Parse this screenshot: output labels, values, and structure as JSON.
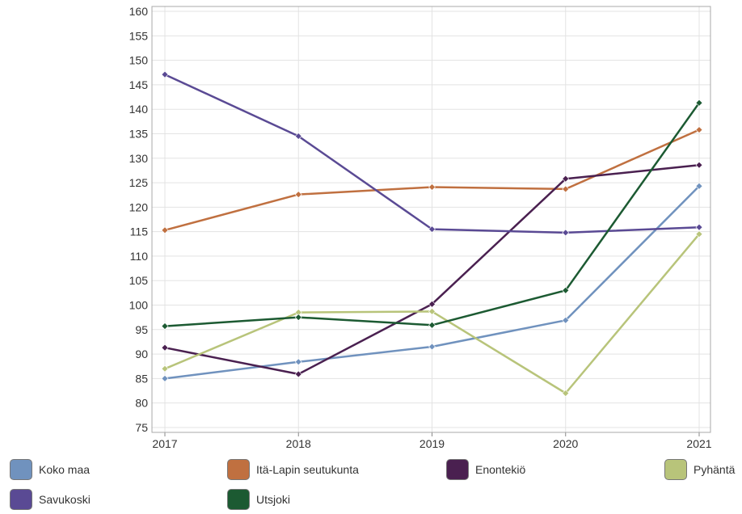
{
  "chart_data": {
    "type": "line",
    "title": "",
    "xlabel": "",
    "ylabel": "",
    "x": [
      "2017",
      "2018",
      "2019",
      "2020",
      "2021"
    ],
    "ylim": [
      74,
      161
    ],
    "yticks": [
      75,
      80,
      85,
      90,
      95,
      100,
      105,
      110,
      115,
      120,
      125,
      130,
      135,
      140,
      145,
      150,
      155,
      160
    ],
    "grid": true,
    "legend_position": "bottom",
    "series": [
      {
        "name": "Koko maa",
        "color": "#7092be",
        "values": [
          85.0,
          88.4,
          91.5,
          96.9,
          124.3
        ]
      },
      {
        "name": "Itä-Lapin seutukunta",
        "color": "#c07040",
        "values": [
          115.3,
          122.6,
          124.1,
          123.7,
          135.8
        ]
      },
      {
        "name": "Enontekiö",
        "color": "#4a2050",
        "values": [
          91.3,
          85.9,
          100.2,
          125.8,
          128.6
        ]
      },
      {
        "name": "Pyhäntä",
        "color": "#b8c47a",
        "values": [
          87.0,
          98.5,
          98.7,
          82.0,
          114.5
        ]
      },
      {
        "name": "Savukoski",
        "color": "#5a4a94",
        "values": [
          147.1,
          134.5,
          115.5,
          114.8,
          115.9
        ]
      },
      {
        "name": "Utsjoki",
        "color": "#1c5a32",
        "values": [
          95.7,
          97.5,
          95.9,
          103.0,
          141.3
        ]
      }
    ]
  }
}
